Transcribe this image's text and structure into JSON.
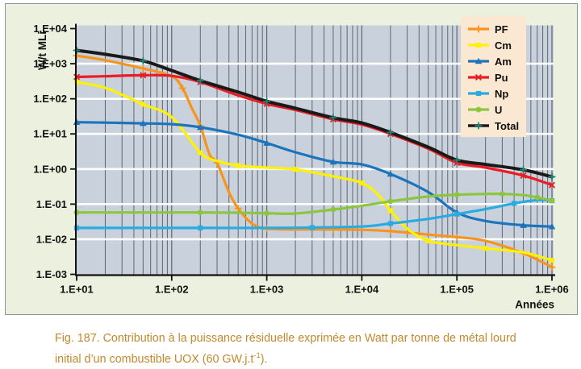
{
  "figure": {
    "caption_line1": "Fig. 187. Contribution à la puissance résiduelle exprimée en Watt par tonne de métal lourd",
    "caption_line2_prefix": "initial d’un combustible UOX (60 GW.j.t",
    "caption_superscript": "-1",
    "caption_line2_suffix": ")."
  },
  "chart_data": {
    "type": "line",
    "title": "",
    "xlabel": "Années",
    "ylabel": "W/t MLi",
    "x_scale": "log",
    "y_scale": "log",
    "xlim": [
      10,
      1000000
    ],
    "ylim": [
      0.001,
      10000
    ],
    "x_ticks": [
      10,
      100,
      1000,
      10000,
      100000,
      1000000
    ],
    "x_tick_labels": [
      "1.E+01",
      "1.E+02",
      "1.E+03",
      "1.E+04",
      "1.E+05",
      "1.E+06"
    ],
    "y_ticks": [
      10000,
      1000,
      100,
      10,
      1,
      0.1,
      0.01,
      0.001
    ],
    "y_tick_labels": [
      "1.E+04",
      "1.E+03",
      "1.E+02",
      "1.E+01",
      "1.E+00",
      "1.E-01",
      "1.E-02",
      "1.E-03"
    ],
    "grid": {
      "vertical": "log-minor-and-major",
      "horizontal": "decades-white"
    },
    "legend_position": "top-right",
    "legend_labels": [
      "PF",
      "Cm",
      "Am",
      "Pu",
      "Np",
      "U",
      "Total"
    ],
    "series": [
      {
        "name": "PF",
        "color": "#F7941E",
        "marker": "plus",
        "x": [
          10,
          20,
          50,
          100,
          130,
          160,
          200,
          250,
          300,
          400,
          500,
          700,
          1000,
          2000,
          5000,
          10000,
          20000,
          50000,
          100000,
          200000,
          500000,
          1000000
        ],
        "y": [
          1700,
          1250,
          730,
          440,
          200,
          60,
          17,
          2.6,
          1.5,
          0.22,
          0.075,
          0.028,
          0.02,
          0.019,
          0.019,
          0.0185,
          0.017,
          0.0135,
          0.0115,
          0.009,
          0.004,
          0.0016
        ]
      },
      {
        "name": "Cm",
        "color": "#FFF200",
        "marker": "square",
        "x": [
          10,
          20,
          50,
          100,
          200,
          300,
          500,
          1000,
          2000,
          5000,
          10000,
          15000,
          20000,
          30000,
          50000,
          100000,
          200000,
          500000,
          1000000
        ],
        "y": [
          300,
          205,
          70,
          30,
          2.9,
          1.7,
          1.25,
          1.1,
          0.98,
          0.62,
          0.4,
          0.18,
          0.065,
          0.02,
          0.009,
          0.0068,
          0.0055,
          0.0042,
          0.0025
        ]
      },
      {
        "name": "Am",
        "color": "#1C75BC",
        "marker": "triangle",
        "x": [
          10,
          20,
          50,
          100,
          200,
          500,
          1000,
          2000,
          5000,
          10000,
          20000,
          50000,
          100000,
          200000,
          500000,
          1000000
        ],
        "y": [
          21.5,
          21,
          20,
          19,
          15.5,
          9.5,
          5.5,
          3.0,
          1.6,
          1.35,
          0.72,
          0.22,
          0.058,
          0.033,
          0.025,
          0.023
        ]
      },
      {
        "name": "Pu",
        "color": "#EC1C24",
        "marker": "x",
        "x": [
          10,
          20,
          50,
          100,
          200,
          500,
          1000,
          2000,
          5000,
          10000,
          20000,
          50000,
          100000,
          200000,
          500000,
          1000000
        ],
        "y": [
          420,
          440,
          470,
          450,
          300,
          125,
          72,
          48,
          26,
          18.5,
          10,
          3.8,
          1.5,
          1.1,
          0.65,
          0.35
        ]
      },
      {
        "name": "Np",
        "color": "#29ABE2",
        "marker": "square",
        "x": [
          10,
          50,
          200,
          1000,
          3000,
          10000,
          20000,
          50000,
          100000,
          200000,
          400000,
          700000,
          1000000
        ],
        "y": [
          0.021,
          0.021,
          0.021,
          0.021,
          0.0215,
          0.023,
          0.028,
          0.038,
          0.052,
          0.072,
          0.105,
          0.13,
          0.125
        ]
      },
      {
        "name": "U",
        "color": "#8CC63F",
        "marker": "circle",
        "x": [
          10,
          50,
          200,
          500,
          1000,
          2000,
          5000,
          10000,
          20000,
          50000,
          100000,
          200000,
          300000,
          500000,
          700000,
          1000000
        ],
        "y": [
          0.058,
          0.058,
          0.058,
          0.057,
          0.055,
          0.054,
          0.07,
          0.09,
          0.12,
          0.165,
          0.185,
          0.195,
          0.195,
          0.18,
          0.155,
          0.125
        ]
      },
      {
        "name": "Total",
        "color": "#1A1A1A",
        "marker": "plus",
        "marker_color": "#1B8577",
        "x": [
          10,
          20,
          50,
          100,
          200,
          500,
          1000,
          2000,
          5000,
          10000,
          20000,
          50000,
          100000,
          200000,
          500000,
          1000000
        ],
        "y": [
          2400,
          1850,
          1200,
          640,
          330,
          155,
          85,
          54,
          29,
          20.5,
          11,
          4.2,
          1.8,
          1.35,
          0.95,
          0.6
        ]
      }
    ],
    "colors": {
      "plot_bg": "#C9D2DC",
      "panel_bg": "#EBF1DE",
      "panel_border": "#8A9494",
      "grid_vertical": "#5E6670",
      "grid_horizontal": "#FFFFFF",
      "axis": "#111111",
      "legend_bg": "#FBE8D2",
      "caption": "#C3892D"
    }
  }
}
